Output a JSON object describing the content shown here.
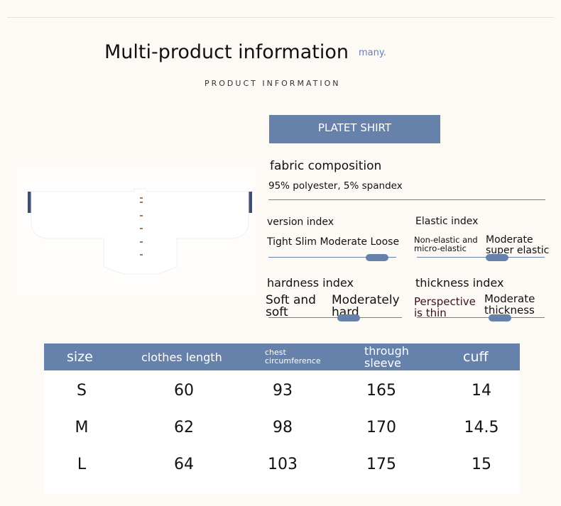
{
  "header": {
    "title": "Multi-product information",
    "title_suffix": "many.",
    "subtitle": "PRODUCT INFORMATION"
  },
  "product": {
    "name": "PLATET SHIRT",
    "image_icon": "white-shirt-image"
  },
  "fabric": {
    "label": "fabric composition",
    "value": "95% polyester, 5% spandex"
  },
  "indices": {
    "version": {
      "title": "version index",
      "options": "Tight Slim Moderate Loose",
      "level": 0.85
    },
    "elastic": {
      "title": "Elastic index",
      "option_a": "Non-elastic and micro-elastic",
      "option_b": "Moderate super elastic",
      "level": 0.63
    },
    "hardness": {
      "title": "hardness index",
      "option_a": "Soft and soft",
      "option_b": "Moderately hard",
      "level": 0.6
    },
    "thickness": {
      "title": "thickness index",
      "option_a": "Perspective is thin",
      "option_b": "Moderate thickness",
      "level": 0.65
    }
  },
  "colors": {
    "accent": "#6681aa",
    "background": "#fdfaf5"
  },
  "size_table": {
    "headers": [
      "size",
      "clothes length",
      "chest circumference",
      "through sleeve",
      "cuff"
    ],
    "rows": [
      [
        "S",
        "60",
        "93",
        "165",
        "14"
      ],
      [
        "M",
        "62",
        "98",
        "170",
        "14.5"
      ],
      [
        "L",
        "64",
        "103",
        "175",
        "15"
      ]
    ]
  }
}
